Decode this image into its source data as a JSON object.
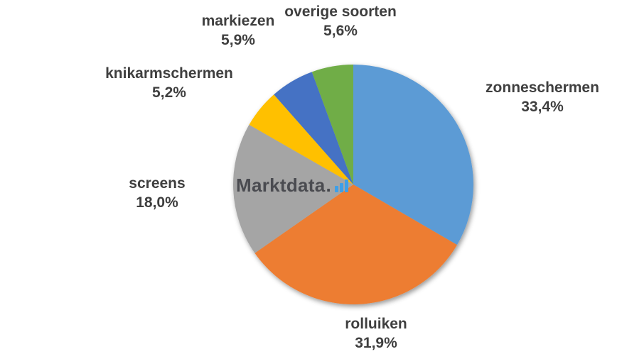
{
  "page": {
    "background": "#FFFFFF"
  },
  "watermark": {
    "text": "Marktdata",
    "dot": ".",
    "icon": "bar-chart-icon",
    "text_color": "#4A4B50",
    "accent_color": "#3E9FE8"
  },
  "chart_data": {
    "type": "pie",
    "title": "",
    "categories": [
      "zonneschermen",
      "rolluiken",
      "screens",
      "knikarmschermen",
      "markiezen",
      "overige soorten"
    ],
    "values": [
      33.4,
      31.9,
      18.0,
      5.2,
      5.9,
      5.6
    ],
    "percent_labels": [
      "33,4%",
      "31,9%",
      "18,0%",
      "5,2%",
      "5,9%",
      "5,6%"
    ],
    "colors": [
      "#5B9BD5",
      "#ED7D31",
      "#A5A5A5",
      "#FFC000",
      "#4472C4",
      "#70AD47"
    ],
    "start_angle_deg": 0,
    "direction": "clockwise",
    "legend": "none",
    "labels_position": "outside",
    "label_text_color": "#3F3F3F"
  }
}
